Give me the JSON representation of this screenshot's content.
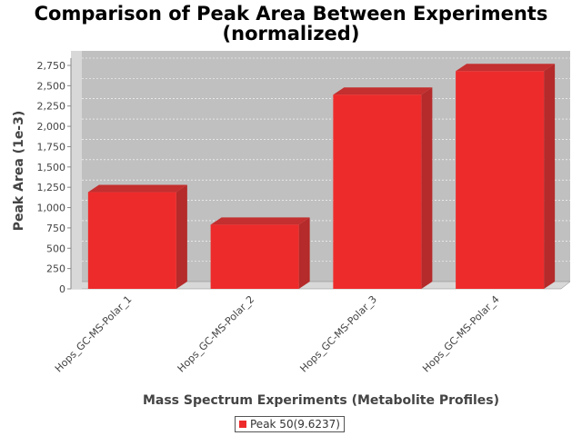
{
  "chart_data": {
    "type": "bar",
    "title_lines": [
      "Comparison of Peak Area Between Experiments",
      "(normalized)"
    ],
    "xlabel": "Mass Spectrum Experiments (Metabolite Profiles)",
    "ylabel": "Peak Area (1e-3)",
    "categories": [
      "Hops_GC-MS-Polar_1",
      "Hops_GC-MS-Polar_2",
      "Hops_GC-MS-Polar_3",
      "Hops_GC-MS-Polar_4"
    ],
    "series": [
      {
        "name": "Peak 50(9.6237)",
        "values": [
          1190,
          790,
          2390,
          2680
        ],
        "color": "#ee2b2b"
      }
    ],
    "ylim": [
      0,
      2750
    ],
    "yticks": [
      0,
      250,
      500,
      750,
      1000,
      1250,
      1500,
      1750,
      2000,
      2250,
      2500,
      2750
    ],
    "ytick_labels": [
      "0",
      "250",
      "500",
      "750",
      "1,000",
      "1,250",
      "1,500",
      "1,750",
      "2,000",
      "2,250",
      "2,500",
      "2,750"
    ],
    "grid": true,
    "legend_position": "bottom",
    "plot_background": "#c0c0c0"
  }
}
